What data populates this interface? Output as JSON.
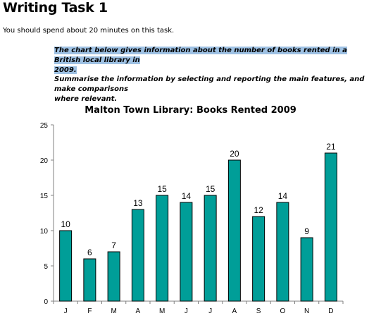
{
  "page": {
    "heading": "Writing Task 1",
    "instruction": "You should spend about 20 minutes on this task.",
    "task_line1": "The chart below gives information about the number of books rented in a British local library in",
    "task_line2": "2009.",
    "task_line3": "Summarise the information by selecting and reporting the main features, and make comparisons",
    "task_line4": "where relevant."
  },
  "colors": {
    "bar": "#009e98",
    "highlight": "#9ec1e3"
  },
  "chart_data": {
    "type": "bar",
    "title": "Malton Town Library: Books Rented 2009",
    "xlabel": "",
    "ylabel": "",
    "categories": [
      "J",
      "F",
      "M",
      "A",
      "M",
      "J",
      "J",
      "A",
      "S",
      "O",
      "N",
      "D"
    ],
    "values": [
      10,
      6,
      7,
      13,
      15,
      14,
      15,
      20,
      12,
      14,
      9,
      21
    ],
    "ylim": [
      0,
      25
    ],
    "yticks": [
      0,
      5,
      10,
      15,
      20,
      25
    ],
    "grid": false,
    "legend": "none"
  }
}
